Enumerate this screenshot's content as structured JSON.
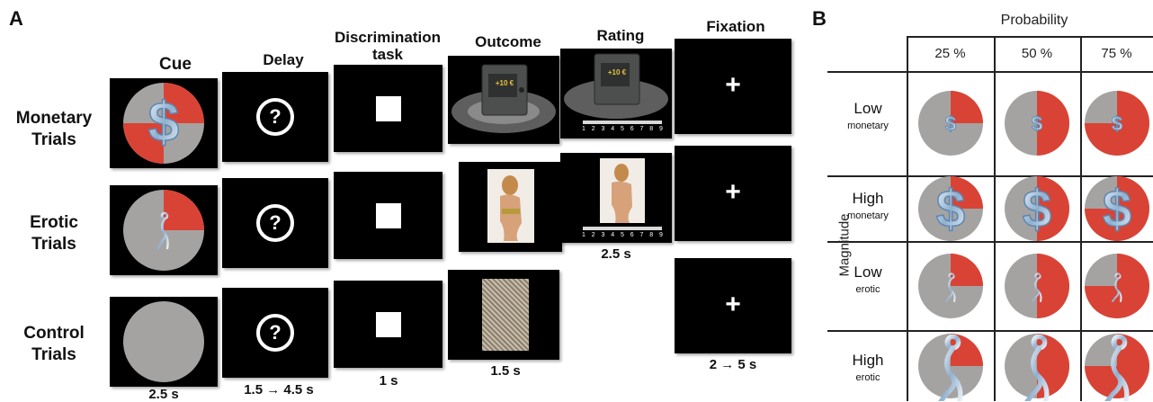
{
  "panel_a": {
    "letter": "A",
    "columns": {
      "cue": "Cue",
      "delay": "Delay",
      "discrimination": "Discrimination task",
      "outcome": "Outcome",
      "rating": "Rating",
      "fixation": "Fixation"
    },
    "rows": {
      "monetary": "Monetary Trials",
      "erotic": "Erotic Trials",
      "control": "Control Trials"
    },
    "durations": {
      "cue": "2.5 s",
      "delay": "1.5 → 4.5 s",
      "discrimination": "1 s",
      "outcome": "1.5 s",
      "rating": "2.5 s",
      "fixation": "2 → 5 s"
    },
    "delay_symbol": "?",
    "fixation_symbol": "+",
    "safe_amount": "+10 €",
    "rating_scale": [
      "1",
      "2",
      "3",
      "4",
      "5",
      "6",
      "7",
      "8",
      "9"
    ],
    "colors": {
      "red": "#d94335",
      "gray": "#a5a3a1",
      "screen": "#000000"
    }
  },
  "panel_b": {
    "letter": "B",
    "x_axis_title": "Probability",
    "y_axis_title": "Magnitude",
    "probabilities": [
      "25 %",
      "50 %",
      "75 %"
    ],
    "probability_fractions": [
      0.25,
      0.5,
      0.75
    ],
    "rows": [
      {
        "magnitude": "Low",
        "type": "monetary",
        "symbol": "dollar-icon",
        "size": "small"
      },
      {
        "magnitude": "High",
        "type": "monetary",
        "symbol": "dollar-icon",
        "size": "large"
      },
      {
        "magnitude": "Low",
        "type": "erotic",
        "symbol": "figure-icon",
        "size": "small"
      },
      {
        "magnitude": "High",
        "type": "erotic",
        "symbol": "figure-icon",
        "size": "large"
      }
    ]
  }
}
